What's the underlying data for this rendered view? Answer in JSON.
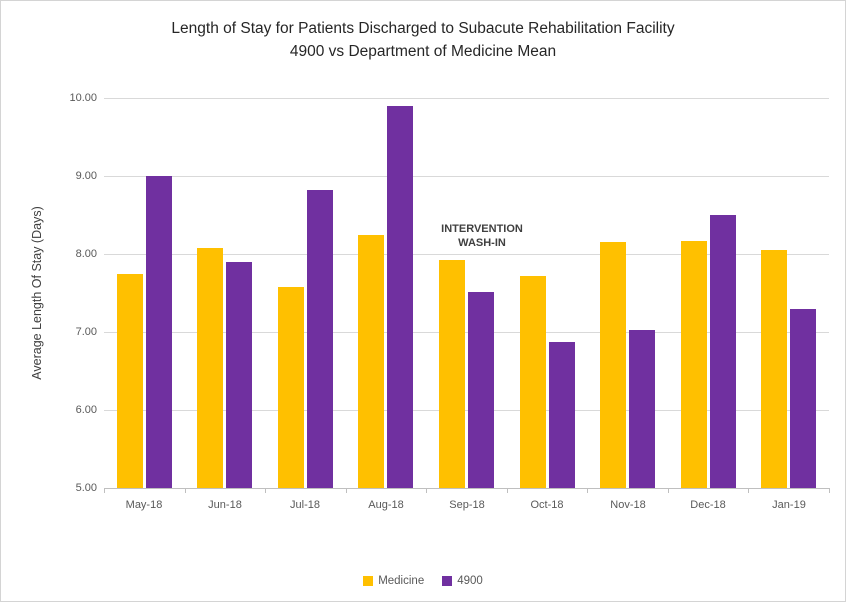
{
  "title": {
    "line1": "Length of Stay for Patients Discharged to Subacute Rehabilitation Facility",
    "line2": "4900 vs Department of Medicine Mean"
  },
  "annotation": {
    "line1": "INTERVENTION",
    "line2": "WASH-IN"
  },
  "y_axis": {
    "title": "Average Length Of Stay (Days)"
  },
  "legend": {
    "items": [
      {
        "label": "Medicine",
        "color": "#FFC000"
      },
      {
        "label": "4900",
        "color": "#7030A0"
      }
    ]
  },
  "colors": {
    "medicine_bar": "#FFC000",
    "dept_bar": "#7030A0",
    "gridline": "#d9d9d9",
    "axis_line": "#bfbfbf",
    "tick_label": "#595959"
  },
  "chart_data": {
    "type": "bar",
    "title": "Length of Stay for Patients Discharged to Subacute Rehabilitation Facility — 4900 vs Department of Medicine Mean",
    "categories": [
      "May-18",
      "Jun-18",
      "Jul-18",
      "Aug-18",
      "Sep-18",
      "Oct-18",
      "Nov-18",
      "Dec-18",
      "Jan-19"
    ],
    "series": [
      {
        "name": "Medicine",
        "color": "#FFC000",
        "values": [
          7.75,
          8.08,
          7.58,
          8.25,
          7.92,
          7.72,
          8.15,
          8.17,
          8.05
        ]
      },
      {
        "name": "4900",
        "color": "#7030A0",
        "values": [
          9.0,
          7.9,
          8.82,
          9.9,
          7.51,
          6.87,
          7.02,
          8.5,
          7.3
        ]
      }
    ],
    "xlabel": "",
    "ylabel": "Average Length Of Stay (Days)",
    "ylim": [
      5.0,
      10.0
    ],
    "ytick_step": 1.0,
    "ytick_format": "0.00",
    "grid": true,
    "legend_position": "bottom",
    "annotations": [
      {
        "text": "INTERVENTION WASH-IN",
        "category": "Sep-18",
        "y": 8.45
      }
    ]
  }
}
